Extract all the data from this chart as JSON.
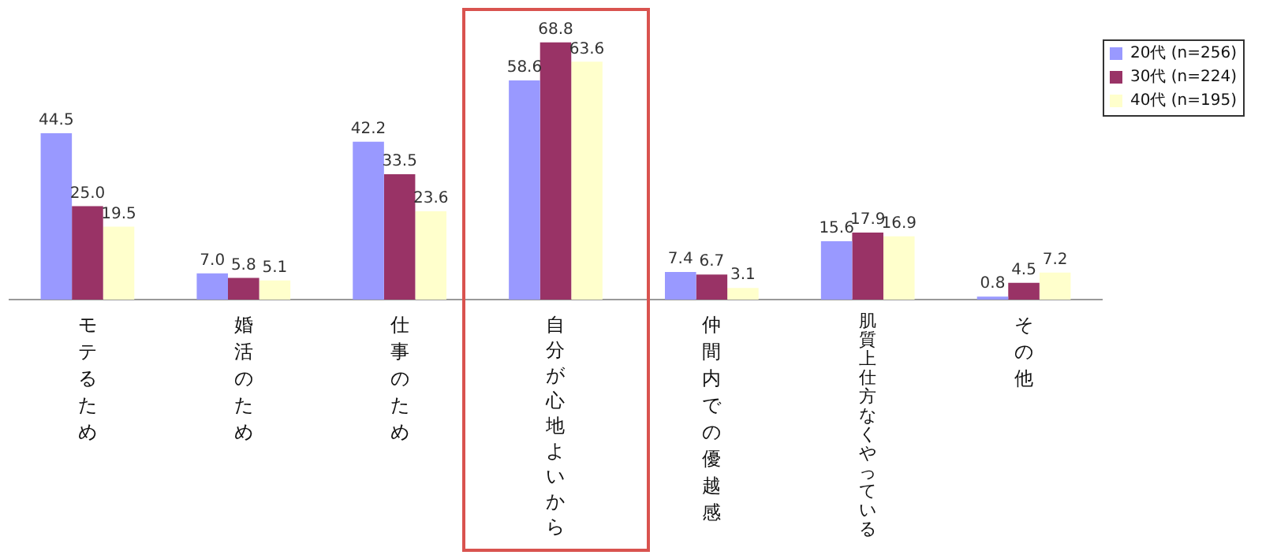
{
  "chart_data": {
    "type": "bar",
    "categories": [
      "モテるため",
      "婚活のため",
      "仕事のため",
      "自分が心地よいから",
      "仲間内での優越感",
      "肌質上仕方なくやっている",
      "その他"
    ],
    "series": [
      {
        "name": "20代 (n=256)",
        "color": "#9999ff",
        "values": [
          44.5,
          7.0,
          42.2,
          58.6,
          7.4,
          15.6,
          0.8
        ],
        "value_labels": [
          "44.5",
          "7.0",
          "42.2",
          "58.6",
          "7.4",
          "15.6",
          "0.8"
        ]
      },
      {
        "name": "30代 (n=224)",
        "color": "#993366",
        "values": [
          25.0,
          5.8,
          33.5,
          68.8,
          6.7,
          17.9,
          4.5
        ],
        "value_labels": [
          "25.0",
          "5.8",
          "33.5",
          "68.8",
          "6.7",
          "17.9",
          "4.5"
        ]
      },
      {
        "name": "40代 (n=195)",
        "color": "#ffffcc",
        "values": [
          19.5,
          5.1,
          23.6,
          63.6,
          3.1,
          16.9,
          7.2
        ],
        "value_labels": [
          "19.5",
          "5.1",
          "23.6",
          "63.6",
          "3.1",
          "16.9",
          "7.2"
        ]
      }
    ],
    "tick_labels": "x",
    "grid": false,
    "legend": "top right"
  }
}
